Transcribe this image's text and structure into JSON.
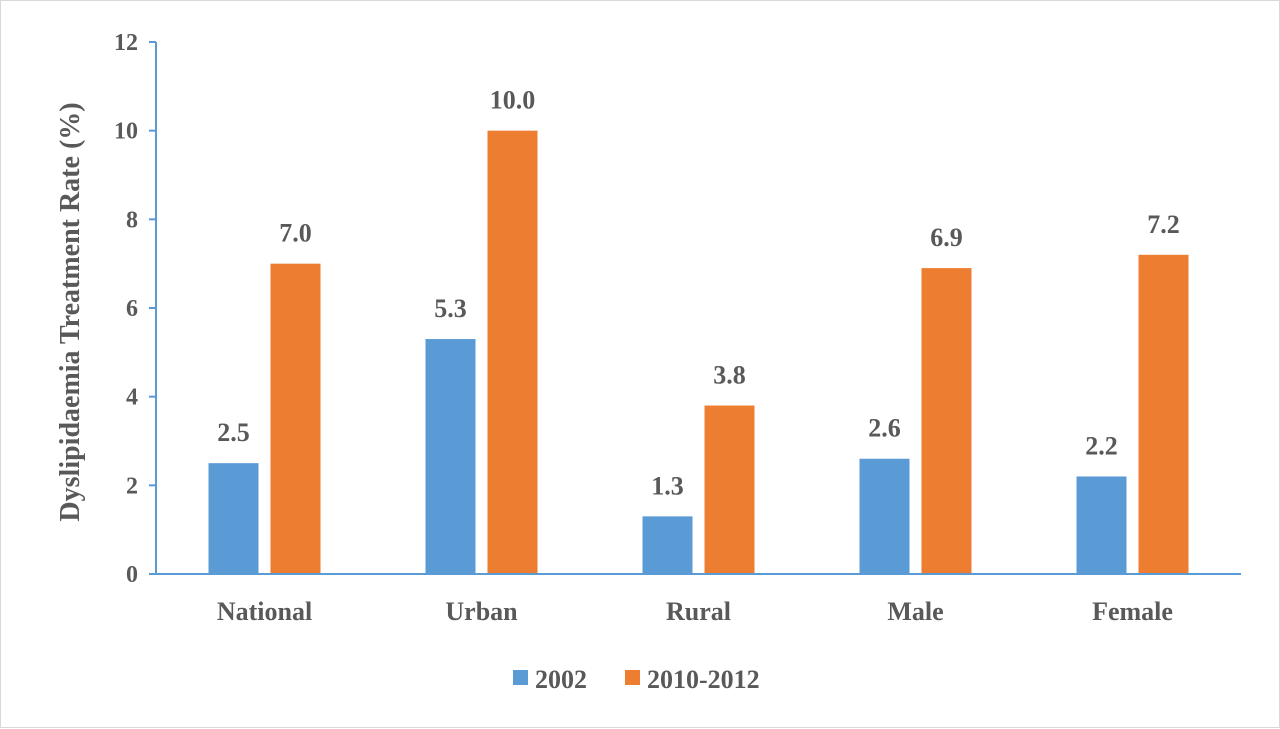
{
  "chart_data": {
    "type": "bar",
    "title": "",
    "xlabel": "",
    "ylabel": "Dyslipidaemia Treatment Rate (%)",
    "ylim": [
      0,
      12
    ],
    "yticks": [
      0,
      2,
      4,
      6,
      8,
      10,
      12
    ],
    "grid": false,
    "legend_position": "bottom",
    "categories": [
      "National",
      "Urban",
      "Rural",
      "Male",
      "Female"
    ],
    "series": [
      {
        "name": "2002",
        "color": "#5b9bd5",
        "values": [
          2.5,
          5.3,
          1.3,
          2.6,
          2.2
        ],
        "labels": [
          "2.5",
          "5.3",
          "1.3",
          "2.6",
          "2.2"
        ]
      },
      {
        "name": "2010-2012",
        "color": "#ed7d31",
        "values": [
          7.0,
          10.0,
          3.8,
          6.9,
          7.2
        ],
        "labels": [
          "7.0",
          "10.0",
          "3.8",
          "6.9",
          "7.2"
        ]
      }
    ],
    "axis_color": "#5b9bd5"
  }
}
